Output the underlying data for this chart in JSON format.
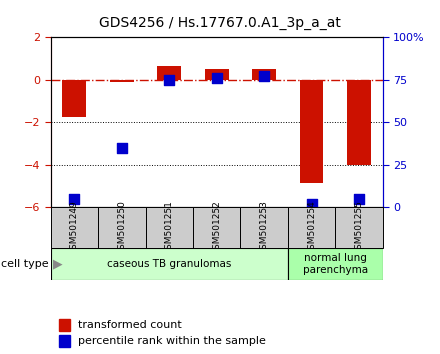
{
  "title": "GDS4256 / Hs.17767.0.A1_3p_a_at",
  "samples": [
    "GSM501249",
    "GSM501250",
    "GSM501251",
    "GSM501252",
    "GSM501253",
    "GSM501254",
    "GSM501255"
  ],
  "transformed_count": [
    -1.75,
    -0.1,
    0.62,
    0.5,
    0.52,
    -4.85,
    -4.0
  ],
  "percentile_rank": [
    5,
    35,
    75,
    76,
    77,
    2,
    5
  ],
  "bar_color": "#cc1100",
  "dot_color": "#0000cc",
  "ylim_left": [
    -6,
    2
  ],
  "ylim_right": [
    0,
    100
  ],
  "yticks_left": [
    -6,
    -4,
    -2,
    0,
    2
  ],
  "yticks_right": [
    0,
    25,
    50,
    75,
    100
  ],
  "yticklabels_right": [
    "0",
    "25",
    "50",
    "75",
    "100%"
  ],
  "dotted_lines": [
    -2,
    -4
  ],
  "cell_type_groups": [
    {
      "label": "caseous TB granulomas",
      "n_samples": 5,
      "color": "#ccffcc"
    },
    {
      "label": "normal lung\nparenchyma",
      "n_samples": 2,
      "color": "#aaffaa"
    }
  ],
  "cell_type_label": "cell type",
  "legend_items": [
    {
      "color": "#cc1100",
      "label": "transformed count"
    },
    {
      "color": "#0000cc",
      "label": "percentile rank within the sample"
    }
  ],
  "bg_color": "#ffffff",
  "sample_box_color": "#cccccc",
  "bar_width": 0.5,
  "dot_size": 50
}
